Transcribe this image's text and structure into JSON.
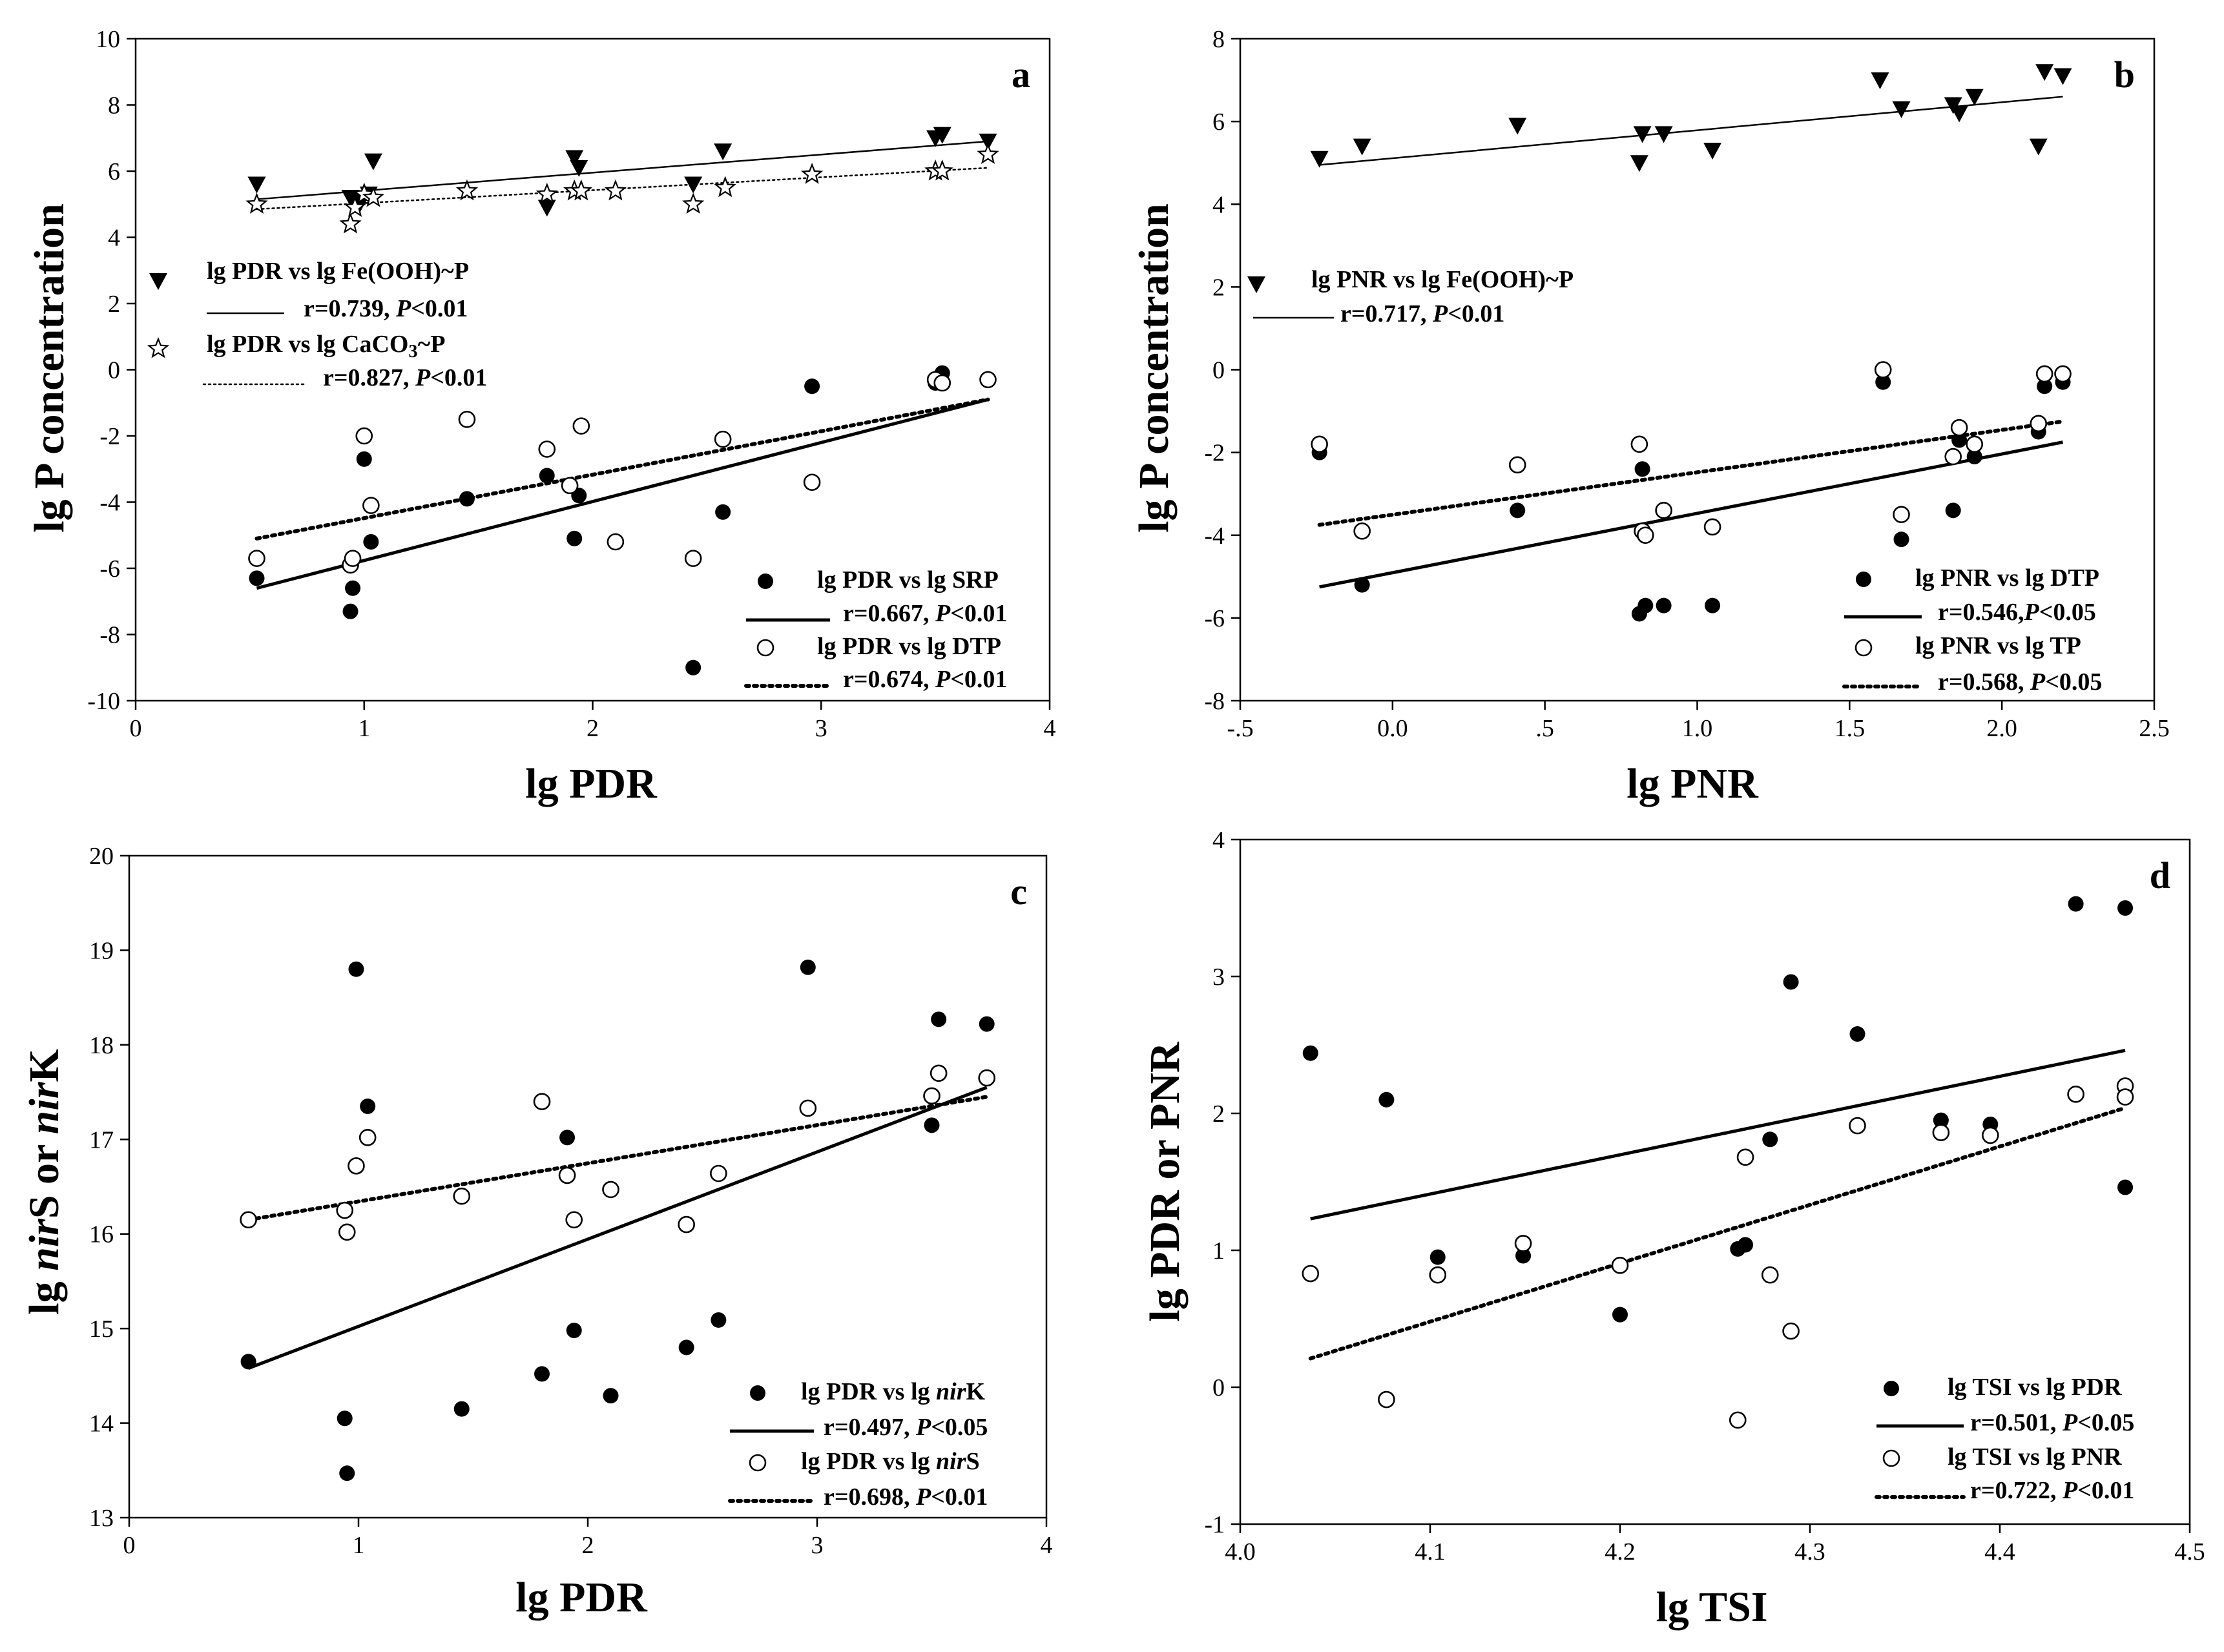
{
  "chart_data": [
    {
      "panel": "a",
      "type": "scatter",
      "xlabel": "lg PDR",
      "ylabel": "lg P concentration",
      "xlim": [
        0,
        4
      ],
      "ylim": [
        -10,
        10
      ],
      "xticks": [
        "0",
        "1",
        "2",
        "3",
        "4"
      ],
      "yticks": [
        "-10",
        "-8",
        "-6",
        "-4",
        "-2",
        "0",
        "2",
        "4",
        "6",
        "8",
        "10"
      ],
      "series": [
        {
          "name": "lg PDR vs lg Fe(OOH)~P",
          "stat": {
            "r": "r=0.739, ",
            "p": "P",
            "rest": "<0.01"
          },
          "marker": "triangle-down",
          "line": "solid-thin",
          "x": [
            0.53,
            0.94,
            0.96,
            0.98,
            1.02,
            1.04,
            1.8,
            1.92,
            1.94,
            2.44,
            2.57,
            3.5,
            3.53,
            3.73
          ],
          "y": [
            5.6,
            5.2,
            5.1,
            5.0,
            5.3,
            6.3,
            4.9,
            6.4,
            6.1,
            5.6,
            6.6,
            7.0,
            7.1,
            6.9
          ],
          "fit": [
            [
              0.53,
              5.15
            ],
            [
              3.73,
              6.9
            ]
          ]
        },
        {
          "name": "lg PDR vs lg CaCO",
          "name_sub": "3",
          "name_tail": "~P",
          "stat": {
            "r": "r=0.827, ",
            "p": "P",
            "rest": "<0.01"
          },
          "marker": "star",
          "line": "dotted-thin",
          "x": [
            0.53,
            0.94,
            0.96,
            1.0,
            1.04,
            1.45,
            1.8,
            1.92,
            1.95,
            2.1,
            2.44,
            2.58,
            2.96,
            3.5,
            3.53,
            3.73
          ],
          "y": [
            5.0,
            4.4,
            4.9,
            5.3,
            5.2,
            5.4,
            5.3,
            5.4,
            5.4,
            5.4,
            5.0,
            5.5,
            5.9,
            6.0,
            6.0,
            6.5
          ],
          "fit": [
            [
              0.53,
              4.85
            ],
            [
              3.73,
              6.1
            ]
          ]
        },
        {
          "name": "lg PDR vs lg SRP",
          "stat": {
            "r": "r=0.667, ",
            "p": "P",
            "rest": "<0.01"
          },
          "marker": "filled-circle",
          "line": "solid-thick",
          "x": [
            0.53,
            0.94,
            0.95,
            1.0,
            1.03,
            1.45,
            1.8,
            1.92,
            1.94,
            2.44,
            2.57,
            2.96,
            3.5,
            3.53
          ],
          "y": [
            -6.3,
            -7.3,
            -6.6,
            -2.7,
            -5.2,
            -3.9,
            -3.2,
            -5.1,
            -3.8,
            -9.0,
            -4.3,
            -0.5,
            -0.4,
            -0.1
          ],
          "fit": [
            [
              0.53,
              -6.6
            ],
            [
              3.73,
              -0.9
            ]
          ]
        },
        {
          "name": "lg PDR vs lg DTP",
          "stat": {
            "r": "r=0.674, ",
            "p": "P",
            "rest": "<0.01"
          },
          "marker": "open-circle",
          "line": "dotted-thick",
          "x": [
            0.53,
            0.94,
            0.95,
            1.0,
            1.03,
            1.45,
            1.8,
            1.9,
            1.95,
            2.1,
            2.44,
            2.57,
            2.96,
            3.5,
            3.53,
            3.73
          ],
          "y": [
            -5.7,
            -5.9,
            -5.7,
            -2.0,
            -4.1,
            -1.5,
            -2.4,
            -3.5,
            -1.7,
            -5.2,
            -5.7,
            -2.1,
            -3.4,
            -0.3,
            -0.4,
            -0.3
          ],
          "fit": [
            [
              0.53,
              -5.1
            ],
            [
              3.73,
              -0.9
            ]
          ]
        }
      ]
    },
    {
      "panel": "b",
      "type": "scatter",
      "xlabel": "lg PNR",
      "ylabel": "lg P concentration",
      "xlim": [
        -0.5,
        2.5
      ],
      "ylim": [
        -8,
        8
      ],
      "xticks": [
        "-.5",
        "0.0",
        ".5",
        "1.0",
        "1.5",
        "2.0",
        "2.5"
      ],
      "yticks": [
        "-8",
        "-6",
        "-4",
        "-2",
        "0",
        "2",
        "4",
        "6",
        "8"
      ],
      "series": [
        {
          "name": "lg PNR vs lg Fe(OOH)~P",
          "stat": {
            "r": "r=0.717, ",
            "p": "P",
            "rest": "<0.01"
          },
          "marker": "triangle-down",
          "line": "solid-thin",
          "x": [
            -0.24,
            -0.1,
            0.41,
            0.81,
            0.82,
            0.89,
            1.05,
            1.6,
            1.67,
            1.84,
            1.86,
            1.91,
            2.12,
            2.14,
            2.2
          ],
          "y": [
            5.1,
            5.4,
            5.9,
            5.0,
            5.7,
            5.7,
            5.3,
            7.0,
            6.3,
            6.4,
            6.2,
            6.6,
            5.4,
            7.2,
            7.1
          ],
          "fit": [
            [
              -0.24,
              4.95
            ],
            [
              2.2,
              6.6
            ]
          ]
        },
        {
          "name": "lg PNR vs lg DTP",
          "stat": {
            "r": "r=0.546,",
            "p": "P",
            "rest": "<0.05"
          },
          "marker": "filled-circle",
          "line": "solid-thick",
          "x": [
            -0.24,
            -0.1,
            0.41,
            0.81,
            0.82,
            0.83,
            0.89,
            1.05,
            1.61,
            1.67,
            1.84,
            1.86,
            1.91,
            2.12,
            2.14,
            2.2
          ],
          "y": [
            -2.0,
            -5.2,
            -3.4,
            -5.9,
            -2.4,
            -5.7,
            -5.7,
            -5.7,
            -0.3,
            -4.1,
            -3.4,
            -1.7,
            -2.1,
            -1.5,
            -0.4,
            -0.3
          ],
          "fit": [
            [
              -0.24,
              -5.25
            ],
            [
              2.2,
              -1.75
            ]
          ]
        },
        {
          "name": "lg PNR vs lg TP",
          "stat": {
            "r": "r=0.568, ",
            "p": "P",
            "rest": "<0.05"
          },
          "marker": "open-circle",
          "line": "dotted-thick",
          "x": [
            -0.24,
            -0.1,
            0.41,
            0.81,
            0.82,
            0.83,
            0.89,
            1.05,
            1.61,
            1.67,
            1.84,
            1.86,
            1.91,
            2.12,
            2.14,
            2.2
          ],
          "y": [
            -1.8,
            -3.9,
            -2.3,
            -1.8,
            -3.9,
            -4.0,
            -3.4,
            -3.8,
            0.0,
            -3.5,
            -2.1,
            -1.4,
            -1.8,
            -1.3,
            -0.1,
            -0.1
          ],
          "fit": [
            [
              -0.24,
              -3.75
            ],
            [
              2.2,
              -1.25
            ]
          ]
        }
      ]
    },
    {
      "panel": "c",
      "type": "scatter",
      "xlabel": "lg PDR",
      "ylabel": {
        "parts": [
          [
            "lg ",
            false
          ],
          [
            "nir",
            true
          ],
          [
            "S or ",
            false
          ],
          [
            "nir",
            true
          ],
          [
            "K",
            false
          ]
        ]
      },
      "xlim": [
        0,
        4
      ],
      "ylim": [
        13,
        20
      ],
      "xticks": [
        "0",
        "1",
        "2",
        "3",
        "4"
      ],
      "yticks": [
        "13",
        "14",
        "15",
        "16",
        "17",
        "18",
        "19",
        "20"
      ],
      "series": [
        {
          "name": {
            "plain": "lg PDR vs lg ",
            "italic": "nir",
            "tail": "K"
          },
          "stat": {
            "r": "r=0.497, ",
            "p": "P",
            "rest": "<0.05"
          },
          "marker": "filled-circle",
          "line": "solid-thick",
          "x": [
            0.52,
            0.94,
            0.95,
            0.99,
            1.04,
            1.45,
            1.8,
            1.91,
            1.94,
            2.1,
            2.43,
            2.57,
            2.96,
            3.5,
            3.53,
            3.74
          ],
          "y": [
            14.65,
            14.05,
            13.47,
            18.8,
            17.35,
            14.15,
            14.52,
            17.02,
            14.98,
            14.29,
            14.8,
            15.09,
            18.82,
            17.15,
            18.27,
            18.22
          ],
          "fit": [
            [
              0.52,
              14.58
            ],
            [
              3.74,
              17.55
            ]
          ]
        },
        {
          "name": {
            "plain": "lg PDR vs lg ",
            "italic": "nir",
            "tail": "S"
          },
          "stat": {
            "r": "r=0.698, ",
            "p": "P",
            "rest": "<0.01"
          },
          "marker": "open-circle",
          "line": "dotted-thick",
          "x": [
            0.52,
            0.94,
            0.95,
            0.99,
            1.04,
            1.45,
            1.8,
            1.91,
            1.94,
            2.1,
            2.43,
            2.57,
            2.96,
            3.5,
            3.53,
            3.74
          ],
          "y": [
            16.15,
            16.25,
            16.02,
            16.72,
            17.02,
            16.4,
            17.4,
            16.62,
            16.15,
            16.47,
            16.1,
            16.64,
            17.33,
            17.46,
            17.7,
            17.65
          ],
          "fit": [
            [
              0.52,
              16.15
            ],
            [
              3.74,
              17.45
            ]
          ]
        }
      ]
    },
    {
      "panel": "d",
      "type": "scatter",
      "xlabel": "lg TSI",
      "ylabel": "lg PDR or PNR",
      "xlim": [
        4.0,
        4.5
      ],
      "ylim": [
        -1,
        4
      ],
      "xticks": [
        "4.0",
        "4.1",
        "4.2",
        "4.3",
        "4.4",
        "4.5"
      ],
      "yticks": [
        "-1",
        "0",
        "1",
        "2",
        "3",
        "4"
      ],
      "series": [
        {
          "name": "lg TSI vs lg PDR",
          "stat": {
            "r": "r=0.501, ",
            "p": "P",
            "rest": "<0.05"
          },
          "marker": "filled-circle",
          "line": "solid-thick",
          "x": [
            4.037,
            4.077,
            4.104,
            4.149,
            4.2,
            4.262,
            4.266,
            4.279,
            4.29,
            4.325,
            4.369,
            4.395,
            4.44,
            4.466,
            4.466
          ],
          "y": [
            2.44,
            2.1,
            0.95,
            0.96,
            0.53,
            1.01,
            1.04,
            1.81,
            2.96,
            2.58,
            1.95,
            1.92,
            3.53,
            3.5,
            1.46
          ],
          "fit": [
            [
              4.037,
              1.23
            ],
            [
              4.466,
              2.46
            ]
          ]
        },
        {
          "name": "lg TSI vs lg PNR",
          "stat": {
            "r": "r=0.722, ",
            "p": "P",
            "rest": "<0.01"
          },
          "marker": "open-circle",
          "line": "dotted-thick",
          "x": [
            4.037,
            4.077,
            4.104,
            4.149,
            4.2,
            4.262,
            4.266,
            4.279,
            4.29,
            4.325,
            4.369,
            4.395,
            4.44,
            4.466,
            4.466
          ],
          "y": [
            0.83,
            -0.09,
            0.82,
            1.05,
            0.89,
            -0.24,
            1.68,
            0.82,
            0.41,
            1.91,
            1.86,
            1.84,
            2.14,
            2.2,
            2.12
          ],
          "fit": [
            [
              4.037,
              0.21
            ],
            [
              4.466,
              2.04
            ]
          ]
        }
      ]
    }
  ]
}
